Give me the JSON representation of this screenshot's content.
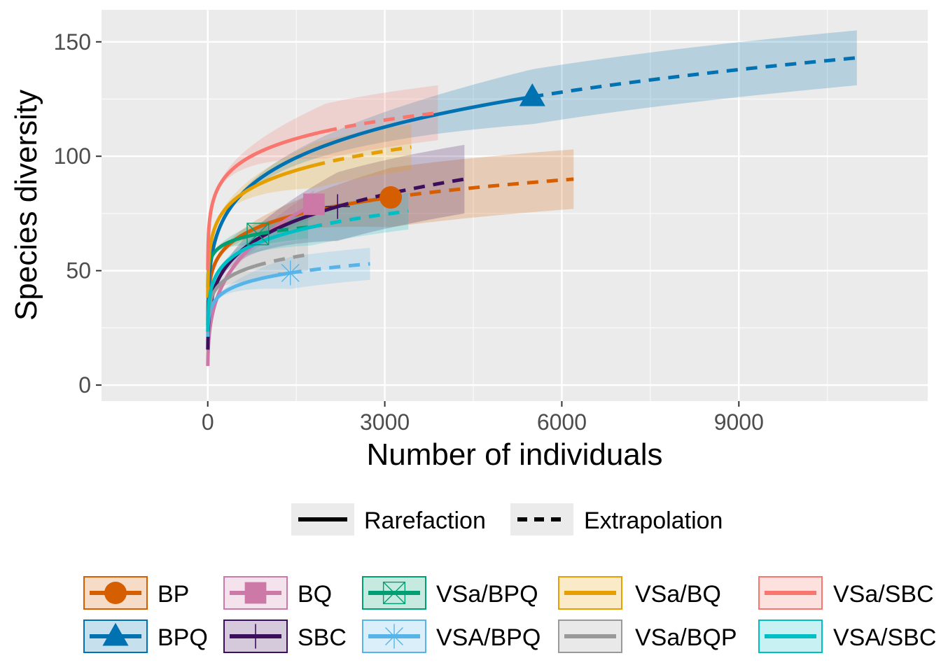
{
  "chart_data": {
    "type": "line",
    "title": "",
    "xlabel": "Number of individuals",
    "ylabel": "Species diversity",
    "xlim": [
      -1800,
      12200
    ],
    "ylim": [
      -7,
      164
    ],
    "x_ticks": [
      0,
      3000,
      6000,
      9000
    ],
    "x_tick_labels": [
      "0",
      "3000",
      "6000",
      "9000"
    ],
    "y_ticks": [
      0,
      50,
      100,
      150
    ],
    "y_tick_labels": [
      "0",
      "50",
      "100",
      "150"
    ],
    "grid": true,
    "legend_position": "bottom",
    "method_legend": [
      {
        "label": "Rarefaction",
        "style": "solid"
      },
      {
        "label": "Extrapolation",
        "style": "dashed"
      }
    ],
    "series": [
      {
        "name": "BP",
        "color": "#D55E00",
        "marker": "circle",
        "n_obs": 3100,
        "s_obs": 82,
        "x_max": 6200,
        "s_max": 90,
        "ci": 13
      },
      {
        "name": "BPQ",
        "color": "#0072B2",
        "marker": "triangle",
        "n_obs": 5500,
        "s_obs": 126,
        "x_max": 11000,
        "s_max": 143,
        "ci": 12
      },
      {
        "name": "BQ",
        "color": "#CC79A7",
        "marker": "square",
        "n_obs": 1800,
        "s_obs": 79,
        "x_max": 1800,
        "s_max": 79,
        "ci": 6
      },
      {
        "name": "SBC",
        "color": "#3D0E5C",
        "marker": "plus",
        "n_obs": 2200,
        "s_obs": 78,
        "x_max": 4350,
        "s_max": 90,
        "ci": 15
      },
      {
        "name": "VSa/BPQ",
        "color": "#009E73",
        "marker": "boxcross",
        "n_obs": 850,
        "s_obs": 66,
        "x_max": 1700,
        "s_max": 69,
        "ci": 5
      },
      {
        "name": "VSA/BPQ",
        "color": "#56B4E9",
        "marker": "star",
        "n_obs": 1400,
        "s_obs": 49,
        "x_max": 2750,
        "s_max": 53,
        "ci": 7
      },
      {
        "name": "VSa/BQ",
        "color": "#E69F00",
        "marker": "none",
        "n_obs": 1800,
        "s_obs": 96,
        "x_max": 3450,
        "s_max": 104,
        "ci": 10
      },
      {
        "name": "VSa/BQP",
        "color": "#999999",
        "marker": "none",
        "n_obs": 800,
        "s_obs": 52,
        "x_max": 1700,
        "s_max": 57,
        "ci": 7
      },
      {
        "name": "VSa/SBC",
        "color": "#F8766D",
        "marker": "none",
        "n_obs": 2000,
        "s_obs": 111,
        "x_max": 3900,
        "s_max": 119,
        "ci": 12
      },
      {
        "name": "VSA/SBC",
        "color": "#00BFC4",
        "marker": "none",
        "n_obs": 1750,
        "s_obs": 69,
        "x_max": 3400,
        "s_max": 76,
        "ci": 8
      }
    ]
  }
}
